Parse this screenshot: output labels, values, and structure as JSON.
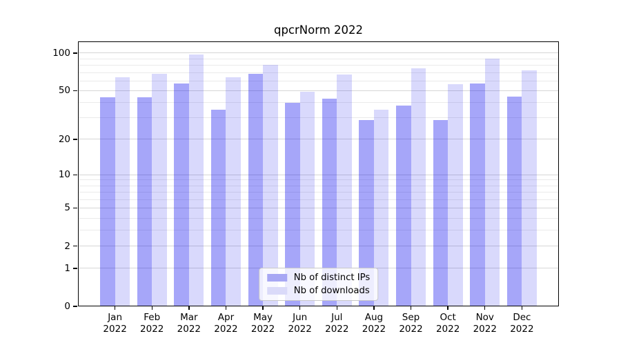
{
  "chart_data": {
    "type": "bar",
    "title": "qpcrNorm 2022",
    "categories": [
      "Jan",
      "Feb",
      "Mar",
      "Apr",
      "May",
      "Jun",
      "Jul",
      "Aug",
      "Sep",
      "Oct",
      "Nov",
      "Dec"
    ],
    "year_label": "2022",
    "series": [
      {
        "name": "Nb of distinct IPs",
        "values": [
          44,
          44,
          57,
          35,
          68,
          40,
          43,
          29,
          38,
          29,
          57,
          45
        ],
        "color": "rgba(0,0,238,0.35)",
        "color_hex": "#A7A7F4"
      },
      {
        "name": "Nb of downloads",
        "values": [
          64,
          68,
          98,
          64,
          81,
          49,
          67,
          35,
          76,
          56,
          90,
          73
        ],
        "color": "rgba(0,0,238,0.15)",
        "color_hex": "#DADAF9"
      }
    ],
    "xlabel": "",
    "ylabel": "",
    "yscale": "log1p",
    "ylim": [
      0,
      124
    ],
    "yticks": [
      0,
      1,
      2,
      5,
      10,
      20,
      50,
      100
    ],
    "minor_gridlines": [
      3,
      4,
      6,
      7,
      8,
      9,
      30,
      40,
      60,
      70,
      80,
      90
    ],
    "grid": true,
    "legend_position": "lower center"
  },
  "colors": {
    "grid_major": "#d6d6d6",
    "grid_minor": "#eaeaea",
    "axis": "#000000",
    "legend_border": "#c8c8c8",
    "background": "#ffffff"
  }
}
